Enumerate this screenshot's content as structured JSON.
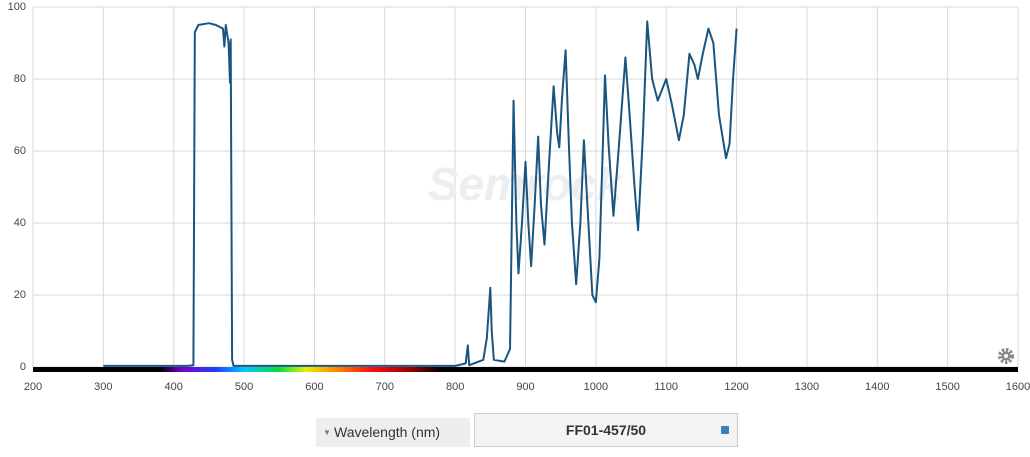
{
  "chart_data": {
    "type": "line",
    "watermark": "Semrock",
    "xlabel": "Wavelength (nm)",
    "xlim": [
      200,
      1600
    ],
    "xticks": [
      200,
      300,
      400,
      500,
      600,
      700,
      800,
      900,
      1000,
      1100,
      1200,
      1300,
      1400,
      1500,
      1600
    ],
    "ylim": [
      0,
      100
    ],
    "yticks": [
      0,
      20,
      40,
      60,
      80,
      100
    ],
    "grid": true,
    "x": [
      300,
      420,
      428,
      430,
      435,
      450,
      460,
      470,
      472,
      474,
      478,
      480,
      481,
      483,
      485,
      800,
      815,
      818,
      820,
      840,
      845,
      850,
      852,
      855,
      870,
      878,
      883,
      887,
      890,
      895,
      900,
      904,
      908,
      913,
      918,
      922,
      927,
      933,
      940,
      945,
      948,
      952,
      957,
      962,
      966,
      972,
      978,
      983,
      988,
      995,
      1000,
      1005,
      1013,
      1018,
      1025,
      1033,
      1042,
      1048,
      1055,
      1060,
      1067,
      1073,
      1080,
      1088,
      1100,
      1108,
      1118,
      1125,
      1133,
      1140,
      1145,
      1152,
      1160,
      1167,
      1175,
      1185,
      1190,
      1195,
      1200
    ],
    "series": [
      {
        "name": "FF01-457/50",
        "color": "#1a5580",
        "values": [
          0.3,
          0.3,
          0.5,
          93,
          95,
          95.5,
          95,
          94,
          89,
          95,
          90,
          79,
          91,
          2,
          0.3,
          0.3,
          1,
          6,
          0.5,
          2,
          8,
          22,
          10,
          2,
          1.5,
          5,
          74,
          40,
          26,
          40,
          57,
          40,
          28,
          45,
          64,
          45,
          34,
          55,
          78,
          65,
          61,
          75,
          88,
          60,
          40,
          23,
          40,
          63,
          45,
          20,
          18,
          30,
          81,
          62,
          42,
          62,
          86,
          70,
          50,
          38,
          65,
          96,
          80,
          74,
          80,
          73,
          63,
          70,
          87,
          84,
          80,
          87,
          94,
          90,
          70,
          58,
          62,
          80,
          94
        ]
      }
    ]
  }
}
